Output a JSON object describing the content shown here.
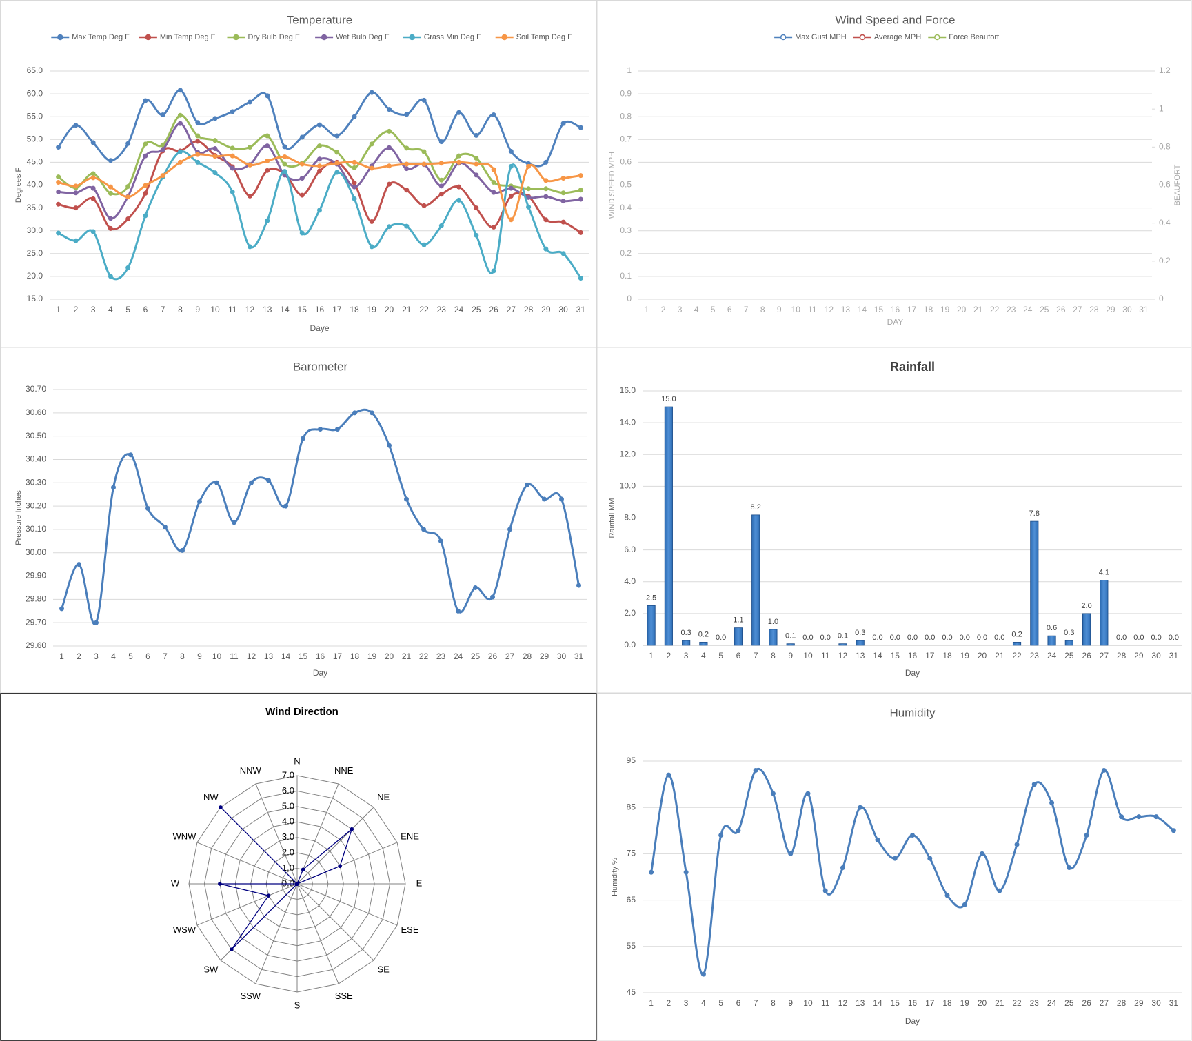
{
  "chart_data": [
    {
      "type": "line",
      "title": "Temperature",
      "xlabel": "Daye",
      "ylabel": "Degrees F",
      "categories": [
        1,
        2,
        3,
        4,
        5,
        6,
        7,
        8,
        9,
        10,
        11,
        12,
        13,
        14,
        15,
        16,
        17,
        18,
        19,
        20,
        21,
        22,
        23,
        24,
        25,
        26,
        27,
        28,
        29,
        30,
        31
      ],
      "ylim": [
        15,
        65
      ],
      "yticks": [
        {
          "value": 15,
          "label": "15.0"
        },
        {
          "value": 20,
          "label": "20.0"
        },
        {
          "value": 25,
          "label": "25.0"
        },
        {
          "value": 30,
          "label": "30.0"
        },
        {
          "value": 35,
          "label": "35.0"
        },
        {
          "value": 40,
          "label": "40.0"
        },
        {
          "value": 45,
          "label": "45.0"
        },
        {
          "value": 50,
          "label": "50.0"
        },
        {
          "value": 55,
          "label": "55.0"
        },
        {
          "value": 60,
          "label": "60.0"
        },
        {
          "value": 65,
          "label": "65.0"
        }
      ],
      "grid": true,
      "smooth": true,
      "legend": "top",
      "series": [
        {
          "name": "Max Temp Deg F",
          "color": "#4f81bd",
          "values": [
            48.3,
            53.1,
            49.3,
            45.4,
            49.1,
            58.5,
            55.4,
            60.8,
            53.7,
            54.6,
            56.1,
            58.2,
            59.6,
            48.4,
            50.5,
            53.2,
            50.8,
            55.0,
            60.3,
            56.6,
            55.5,
            58.6,
            49.5,
            55.9,
            50.9,
            55.4,
            47.4,
            44.7,
            45.0,
            53.5,
            52.6
          ]
        },
        {
          "name": "Min Temp Deg F",
          "color": "#c0504d",
          "values": [
            35.8,
            35.0,
            37.0,
            30.5,
            32.6,
            38.2,
            47.5,
            47.5,
            49.6,
            46.5,
            44.0,
            37.6,
            43.2,
            42.5,
            37.8,
            43.1,
            45.0,
            40.5,
            32.0,
            40.2,
            38.9,
            35.5,
            38.0,
            39.6,
            35.0,
            30.8,
            37.6,
            37.5,
            32.4,
            31.9,
            29.6
          ]
        },
        {
          "name": "Dry Bulb Deg F",
          "color": "#9bbb59",
          "values": [
            41.8,
            39.4,
            42.5,
            38.2,
            39.7,
            49.0,
            48.8,
            55.3,
            50.8,
            49.8,
            48.1,
            48.3,
            50.8,
            44.6,
            44.8,
            48.6,
            47.2,
            43.8,
            49.0,
            51.8,
            48.1,
            47.3,
            41.1,
            46.4,
            45.9,
            40.6,
            39.8,
            39.2,
            39.2,
            38.3,
            38.9
          ]
        },
        {
          "name": "Wet Bulb Deg F",
          "color": "#8064a2",
          "values": [
            38.5,
            38.3,
            39.3,
            32.7,
            37.5,
            46.4,
            47.8,
            53.5,
            47.2,
            48.0,
            43.7,
            44.5,
            48.6,
            42.2,
            41.5,
            45.7,
            44.6,
            39.6,
            44.2,
            48.2,
            43.6,
            44.5,
            39.8,
            44.8,
            42.2,
            38.4,
            39.3,
            37.3,
            37.5,
            36.5,
            36.9
          ]
        },
        {
          "name": "Grass Min Deg F",
          "color": "#4bacc6",
          "values": [
            29.5,
            27.8,
            29.8,
            20.0,
            21.9,
            33.3,
            41.8,
            47.3,
            45.0,
            42.7,
            38.5,
            26.5,
            32.2,
            43.0,
            29.5,
            34.5,
            42.8,
            37.0,
            26.5,
            30.9,
            31.0,
            26.9,
            31.1,
            36.7,
            29.0,
            21.2,
            44.1,
            35.2,
            26.0,
            25.0,
            19.6
          ]
        },
        {
          "name": "Soil Temp Deg F",
          "color": "#f79646",
          "values": [
            40.6,
            39.8,
            41.6,
            39.6,
            37.4,
            39.9,
            42.1,
            45.0,
            46.7,
            46.3,
            46.4,
            44.4,
            45.3,
            46.2,
            44.6,
            44.2,
            44.8,
            45.0,
            43.7,
            44.2,
            44.6,
            44.6,
            44.8,
            45.0,
            44.6,
            43.4,
            32.4,
            44.1,
            41.0,
            41.5,
            42.1
          ]
        }
      ]
    },
    {
      "type": "line",
      "title": "Wind Speed and Force",
      "xlabel": "DAY",
      "ylabel": "WIND SPEED MPH",
      "y2label": "BEAUFORT",
      "categories": [
        1,
        2,
        3,
        4,
        5,
        6,
        7,
        8,
        9,
        10,
        11,
        12,
        13,
        14,
        15,
        16,
        17,
        18,
        19,
        20,
        21,
        22,
        23,
        24,
        25,
        26,
        27,
        28,
        29,
        30,
        31
      ],
      "ylim": [
        0,
        1
      ],
      "yticks": [
        0,
        0.1,
        0.2,
        0.3,
        0.4,
        0.5,
        0.6,
        0.7,
        0.8,
        0.9,
        1
      ],
      "y2lim": [
        0,
        1.2
      ],
      "y2ticks": [
        0,
        0.2,
        0.4,
        0.6,
        0.8,
        1,
        1.2
      ],
      "grid": true,
      "smooth": true,
      "legend": "top",
      "series": [
        {
          "name": "Max Gust MPH",
          "color": "#4f81bd",
          "values": [
            null,
            null,
            null,
            null,
            null,
            null,
            null,
            null,
            null,
            null,
            null,
            null,
            null,
            null,
            null,
            null,
            null,
            null,
            null,
            null,
            null,
            null,
            null,
            null,
            null,
            null,
            null,
            null,
            null,
            null,
            null
          ]
        },
        {
          "name": "Average MPH",
          "color": "#c0504d",
          "values": [
            null,
            null,
            null,
            null,
            null,
            null,
            null,
            null,
            null,
            null,
            null,
            null,
            null,
            null,
            null,
            null,
            null,
            null,
            null,
            null,
            null,
            null,
            null,
            null,
            null,
            null,
            null,
            null,
            null,
            null,
            null
          ]
        },
        {
          "name": "Force Beaufort",
          "color": "#9bbb59",
          "axis": "y2",
          "values": [
            null,
            null,
            null,
            null,
            null,
            null,
            null,
            null,
            null,
            null,
            null,
            null,
            null,
            null,
            null,
            null,
            null,
            null,
            null,
            null,
            null,
            null,
            null,
            null,
            null,
            null,
            null,
            null,
            null,
            null,
            null
          ]
        }
      ]
    },
    {
      "type": "line",
      "title": "Barometer",
      "xlabel": "Day",
      "ylabel": "Pressure Inches",
      "categories": [
        1,
        2,
        3,
        4,
        5,
        6,
        7,
        8,
        9,
        10,
        11,
        12,
        13,
        14,
        15,
        16,
        17,
        18,
        19,
        20,
        21,
        22,
        23,
        24,
        25,
        26,
        27,
        28,
        29,
        30,
        31
      ],
      "ylim": [
        29.6,
        30.7
      ],
      "yticks": [
        {
          "value": 29.6,
          "label": "29.60"
        },
        {
          "value": 29.7,
          "label": "29.70"
        },
        {
          "value": 29.8,
          "label": "29.80"
        },
        {
          "value": 29.9,
          "label": "29.90"
        },
        {
          "value": 30.0,
          "label": "30.00"
        },
        {
          "value": 30.1,
          "label": "30.10"
        },
        {
          "value": 30.2,
          "label": "30.20"
        },
        {
          "value": 30.3,
          "label": "30.30"
        },
        {
          "value": 30.4,
          "label": "30.40"
        },
        {
          "value": 30.5,
          "label": "30.50"
        },
        {
          "value": 30.6,
          "label": "30.60"
        },
        {
          "value": 30.7,
          "label": "30.70"
        }
      ],
      "grid": true,
      "smooth": true,
      "color": "#4a7ebb",
      "values": [
        29.76,
        29.95,
        29.7,
        30.28,
        30.42,
        30.19,
        30.11,
        30.01,
        30.22,
        30.3,
        30.13,
        30.3,
        30.31,
        30.2,
        30.49,
        30.53,
        30.53,
        30.6,
        30.6,
        30.46,
        30.23,
        30.1,
        30.05,
        29.75,
        29.85,
        29.81,
        30.1,
        30.29,
        30.23,
        30.23,
        29.86
      ]
    },
    {
      "type": "bar",
      "title": "Rainfall",
      "xlabel": "Day",
      "ylabel": "Rainfall MM",
      "categories": [
        1,
        2,
        3,
        4,
        5,
        6,
        7,
        8,
        9,
        10,
        11,
        12,
        13,
        14,
        15,
        16,
        17,
        18,
        19,
        20,
        21,
        22,
        23,
        24,
        25,
        26,
        27,
        28,
        29,
        30,
        31
      ],
      "ylim": [
        0,
        16
      ],
      "yticks": [
        {
          "value": 0,
          "label": "0.0"
        },
        {
          "value": 2,
          "label": "2.0"
        },
        {
          "value": 4,
          "label": "4.0"
        },
        {
          "value": 6,
          "label": "6.0"
        },
        {
          "value": 8,
          "label": "8.0"
        },
        {
          "value": 10,
          "label": "10.0"
        },
        {
          "value": 12,
          "label": "12.0"
        },
        {
          "value": 14,
          "label": "14.0"
        },
        {
          "value": 16,
          "label": "16.0"
        }
      ],
      "grid": true,
      "color": "#2e6db4",
      "values": [
        2.5,
        15.0,
        0.3,
        0.2,
        0.0,
        1.1,
        8.2,
        1.0,
        0.1,
        0.0,
        0.0,
        0.1,
        0.3,
        0.0,
        0.0,
        0.0,
        0.0,
        0.0,
        0.0,
        0.0,
        0.0,
        0.2,
        7.8,
        0.6,
        0.3,
        2.0,
        4.1,
        0.0,
        0.0,
        0.0,
        0.0
      ],
      "value_labels": [
        "2.5",
        "15.0",
        "0.3",
        "0.2",
        "0.0",
        "1.1",
        "8.2",
        "1.0",
        "0.1",
        "0.0",
        "0.0",
        "0.1",
        "0.3",
        "0.0",
        "0.0",
        "0.0",
        "0.0",
        "0.0",
        "0.0",
        "0.0",
        "0.0",
        "0.2",
        "7.8",
        "0.6",
        "0.3",
        "2.0",
        "4.1",
        "0.0",
        "0.0",
        "0.0",
        "0.0"
      ]
    },
    {
      "type": "radar",
      "title": "Wind Direction",
      "categories": [
        "N",
        "NNE",
        "NE",
        "ENE",
        "E",
        "ESE",
        "SE",
        "SSE",
        "S",
        "SSW",
        "SW",
        "WSW",
        "W",
        "WNW",
        "NW",
        "NNW"
      ],
      "values": [
        0,
        1,
        5,
        3,
        0,
        0,
        0,
        0,
        0,
        0,
        6,
        2,
        5,
        0,
        7,
        0
      ],
      "rlim": [
        0,
        7
      ],
      "rticks": [
        {
          "value": 0,
          "label": "0.0"
        },
        {
          "value": 1,
          "label": "1.0"
        },
        {
          "value": 2,
          "label": "2.0"
        },
        {
          "value": 3,
          "label": "3.0"
        },
        {
          "value": 4,
          "label": "4.0"
        },
        {
          "value": 5,
          "label": "5.0"
        },
        {
          "value": 6,
          "label": "6.0"
        },
        {
          "value": 7,
          "label": "7.0"
        }
      ],
      "color": "#000080"
    },
    {
      "type": "line",
      "title": "Humidity",
      "xlabel": "Day",
      "ylabel": "Humidity %",
      "categories": [
        1,
        2,
        3,
        4,
        5,
        6,
        7,
        8,
        9,
        10,
        11,
        12,
        13,
        14,
        15,
        16,
        17,
        18,
        19,
        20,
        21,
        22,
        23,
        24,
        25,
        26,
        27,
        28,
        29,
        30,
        31
      ],
      "ylim": [
        45,
        95
      ],
      "yticks": [
        45,
        55,
        65,
        75,
        85,
        95
      ],
      "grid": true,
      "smooth": true,
      "color": "#4a7ebb",
      "values": [
        71,
        92,
        71,
        49,
        79,
        80,
        93,
        88,
        75,
        88,
        67,
        72,
        85,
        78,
        74,
        79,
        74,
        66,
        64,
        75,
        67,
        77,
        90,
        86,
        72,
        79,
        93,
        83,
        83,
        83,
        80
      ]
    }
  ]
}
